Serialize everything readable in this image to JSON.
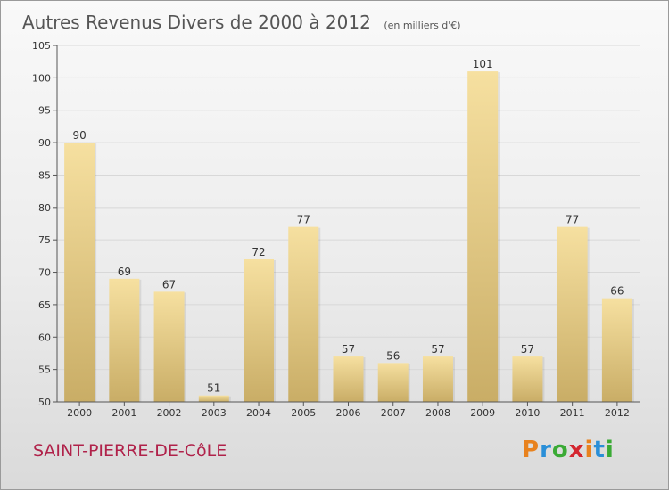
{
  "chart_data": {
    "type": "bar",
    "title": "Autres Revenus Divers de 2000 à 2012",
    "subtitle": "(en milliers d'€)",
    "categories": [
      "2000",
      "2001",
      "2002",
      "2003",
      "2004",
      "2005",
      "2006",
      "2007",
      "2008",
      "2009",
      "2010",
      "2011",
      "2012"
    ],
    "values": [
      90,
      69,
      67,
      51,
      72,
      77,
      57,
      56,
      57,
      101,
      57,
      77,
      66
    ],
    "ylim": [
      50,
      105
    ],
    "yticks": [
      50,
      55,
      60,
      65,
      70,
      75,
      80,
      85,
      90,
      95,
      100,
      105
    ],
    "grid": true,
    "data_labels": true,
    "colors": {
      "bar_light": "#f6e0a0",
      "bar_dark": "#c9ad66",
      "grid": "#d8d8d8",
      "axis": "#555555"
    }
  },
  "commune": "SAINT-PIERRE-DE-CôLE",
  "logo": {
    "letters": [
      "P",
      "r",
      "o",
      "x",
      "i",
      "t",
      "i"
    ],
    "colors": [
      "#e8821e",
      "#2a8fd8",
      "#3aaa35",
      "#d4262f",
      "#e8821e",
      "#2a8fd8",
      "#3aaa35"
    ]
  }
}
